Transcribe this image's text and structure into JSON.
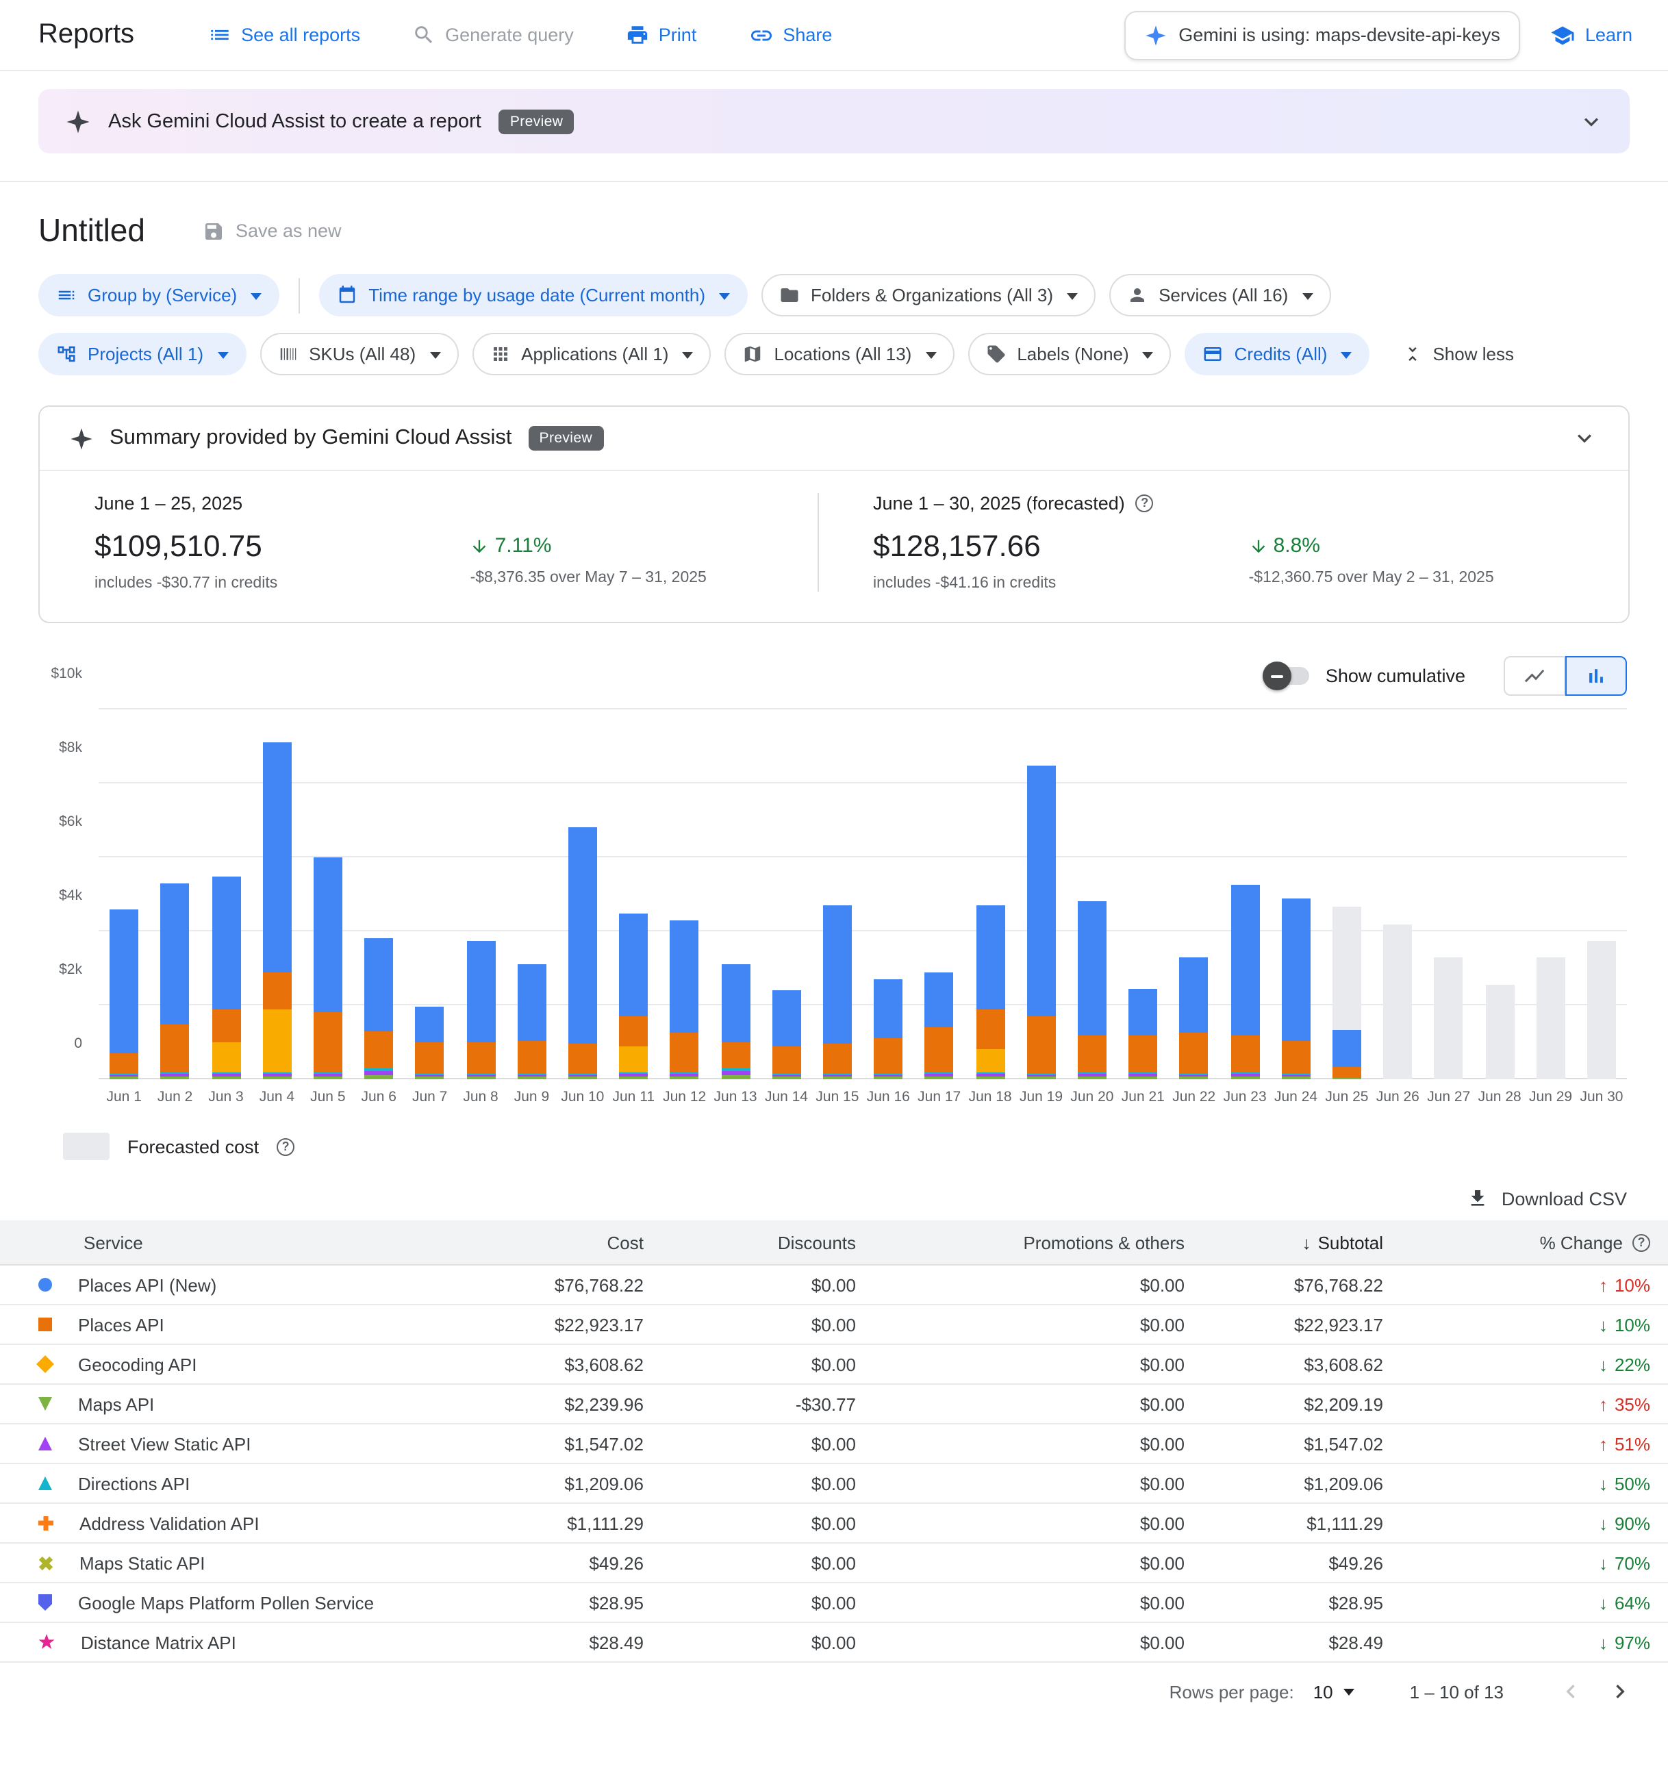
{
  "header": {
    "title": "Reports",
    "see_all": "See all reports",
    "generate_query": "Generate query",
    "print": "Print",
    "share": "Share",
    "gemini_using": "Gemini is using: maps-devsite-api-keys",
    "learn": "Learn"
  },
  "banner": {
    "text": "Ask Gemini Cloud Assist to create a report",
    "badge": "Preview"
  },
  "report": {
    "title": "Untitled",
    "save_as_new": "Save as new"
  },
  "filters": {
    "chips": [
      "Group by (Service)",
      "Time range by usage date (Current month)",
      "Folders & Organizations (All 3)",
      "Services (All 16)",
      "Projects (All 1)",
      "SKUs (All 48)",
      "Applications (All 1)",
      "Locations (All 13)",
      "Labels (None)",
      "Credits (All)"
    ],
    "show_less": "Show less"
  },
  "summary": {
    "title": "Summary provided by Gemini Cloud Assist",
    "badge": "Preview",
    "current": {
      "period": "June 1 – 25, 2025",
      "amount": "$109,510.75",
      "credits": "includes -$30.77 in credits",
      "change_pct": "7.11%",
      "change_note": "-$8,376.35 over May 7 – 31, 2025"
    },
    "forecast": {
      "period": "June 1 – 30, 2025 (forecasted)",
      "amount": "$128,157.66",
      "credits": "includes -$41.16 in credits",
      "change_pct": "8.8%",
      "change_note": "-$12,360.75 over May 2 – 31, 2025"
    }
  },
  "chart_controls": {
    "cumulative": "Show cumulative"
  },
  "chart_data": {
    "type": "bar",
    "stacked": true,
    "ylim": [
      0,
      10000
    ],
    "yticks": [
      {
        "v": 0,
        "label": "0"
      },
      {
        "v": 2,
        "label": "$2k"
      },
      {
        "v": 4,
        "label": "$4k"
      },
      {
        "v": 6,
        "label": "$6k"
      },
      {
        "v": 8,
        "label": "$8k"
      },
      {
        "v": 10,
        "label": "$10k"
      }
    ],
    "unit": "USD (thousands)",
    "legend_label": "Forecasted cost",
    "colors": {
      "blue": "#4285f4",
      "orange": "#e8710a",
      "yellow": "#f9ab00",
      "green": "#7cb342",
      "purple": "#a142f4",
      "teal": "#12b5cb",
      "gray": "#e8eaed"
    },
    "series_colors": {
      "blue": "Places API (New)",
      "orange": "Places API",
      "yellow": "Geocoding API",
      "green": "Maps API",
      "purple": "Street View Static API",
      "teal": "Directions API",
      "gray": "Forecasted cost"
    },
    "days": [
      {
        "label": "Jun 1",
        "stack": [
          [
            "green",
            0.06
          ],
          [
            "purple",
            0.06
          ],
          [
            "teal",
            0.03
          ],
          [
            "orange",
            0.55
          ],
          [
            "blue",
            3.9
          ]
        ]
      },
      {
        "label": "Jun 2",
        "stack": [
          [
            "green",
            0.08
          ],
          [
            "purple",
            0.08
          ],
          [
            "teal",
            0.04
          ],
          [
            "orange",
            1.3
          ],
          [
            "blue",
            3.8
          ]
        ]
      },
      {
        "label": "Jun 3",
        "stack": [
          [
            "green",
            0.08
          ],
          [
            "purple",
            0.08
          ],
          [
            "teal",
            0.04
          ],
          [
            "yellow",
            0.8
          ],
          [
            "orange",
            0.9
          ],
          [
            "blue",
            3.6
          ]
        ]
      },
      {
        "label": "Jun 4",
        "stack": [
          [
            "green",
            0.08
          ],
          [
            "purple",
            0.08
          ],
          [
            "teal",
            0.04
          ],
          [
            "yellow",
            1.7
          ],
          [
            "orange",
            1.0
          ],
          [
            "blue",
            6.2
          ]
        ]
      },
      {
        "label": "Jun 5",
        "stack": [
          [
            "green",
            0.08
          ],
          [
            "purple",
            0.08
          ],
          [
            "teal",
            0.04
          ],
          [
            "orange",
            1.6
          ],
          [
            "blue",
            4.2
          ]
        ]
      },
      {
        "label": "Jun 6",
        "stack": [
          [
            "green",
            0.12
          ],
          [
            "purple",
            0.12
          ],
          [
            "teal",
            0.06
          ],
          [
            "orange",
            1.0
          ],
          [
            "blue",
            2.5
          ]
        ]
      },
      {
        "label": "Jun 7",
        "stack": [
          [
            "green",
            0.06
          ],
          [
            "purple",
            0.06
          ],
          [
            "teal",
            0.03
          ],
          [
            "orange",
            0.85
          ],
          [
            "blue",
            0.95
          ]
        ]
      },
      {
        "label": "Jun 8",
        "stack": [
          [
            "green",
            0.06
          ],
          [
            "purple",
            0.06
          ],
          [
            "teal",
            0.03
          ],
          [
            "orange",
            0.85
          ],
          [
            "blue",
            2.75
          ]
        ]
      },
      {
        "label": "Jun 9",
        "stack": [
          [
            "green",
            0.06
          ],
          [
            "purple",
            0.06
          ],
          [
            "teal",
            0.03
          ],
          [
            "orange",
            0.9
          ],
          [
            "blue",
            2.05
          ]
        ]
      },
      {
        "label": "Jun 10",
        "stack": [
          [
            "green",
            0.06
          ],
          [
            "purple",
            0.06
          ],
          [
            "teal",
            0.03
          ],
          [
            "orange",
            0.8
          ],
          [
            "blue",
            5.85
          ]
        ]
      },
      {
        "label": "Jun 11",
        "stack": [
          [
            "green",
            0.08
          ],
          [
            "purple",
            0.08
          ],
          [
            "teal",
            0.04
          ],
          [
            "yellow",
            0.7
          ],
          [
            "orange",
            0.8
          ],
          [
            "blue",
            2.8
          ]
        ]
      },
      {
        "label": "Jun 12",
        "stack": [
          [
            "green",
            0.08
          ],
          [
            "purple",
            0.08
          ],
          [
            "teal",
            0.04
          ],
          [
            "orange",
            1.05
          ],
          [
            "blue",
            3.05
          ]
        ]
      },
      {
        "label": "Jun 13",
        "stack": [
          [
            "green",
            0.12
          ],
          [
            "purple",
            0.12
          ],
          [
            "teal",
            0.06
          ],
          [
            "orange",
            0.7
          ],
          [
            "blue",
            2.1
          ]
        ]
      },
      {
        "label": "Jun 14",
        "stack": [
          [
            "green",
            0.06
          ],
          [
            "purple",
            0.06
          ],
          [
            "teal",
            0.03
          ],
          [
            "orange",
            0.75
          ],
          [
            "blue",
            1.5
          ]
        ]
      },
      {
        "label": "Jun 15",
        "stack": [
          [
            "green",
            0.06
          ],
          [
            "purple",
            0.06
          ],
          [
            "teal",
            0.03
          ],
          [
            "orange",
            0.8
          ],
          [
            "blue",
            3.75
          ]
        ]
      },
      {
        "label": "Jun 16",
        "stack": [
          [
            "green",
            0.06
          ],
          [
            "purple",
            0.06
          ],
          [
            "teal",
            0.03
          ],
          [
            "orange",
            0.95
          ],
          [
            "blue",
            1.6
          ]
        ]
      },
      {
        "label": "Jun 17",
        "stack": [
          [
            "green",
            0.08
          ],
          [
            "purple",
            0.08
          ],
          [
            "teal",
            0.04
          ],
          [
            "orange",
            1.2
          ],
          [
            "blue",
            1.5
          ]
        ]
      },
      {
        "label": "Jun 18",
        "stack": [
          [
            "green",
            0.08
          ],
          [
            "purple",
            0.08
          ],
          [
            "teal",
            0.04
          ],
          [
            "yellow",
            0.6
          ],
          [
            "orange",
            1.1
          ],
          [
            "blue",
            2.8
          ]
        ]
      },
      {
        "label": "Jun 19",
        "stack": [
          [
            "green",
            0.06
          ],
          [
            "purple",
            0.06
          ],
          [
            "teal",
            0.03
          ],
          [
            "orange",
            1.55
          ],
          [
            "blue",
            6.8
          ]
        ]
      },
      {
        "label": "Jun 20",
        "stack": [
          [
            "green",
            0.08
          ],
          [
            "purple",
            0.08
          ],
          [
            "teal",
            0.04
          ],
          [
            "orange",
            1.0
          ],
          [
            "blue",
            3.6
          ]
        ]
      },
      {
        "label": "Jun 21",
        "stack": [
          [
            "green",
            0.08
          ],
          [
            "purple",
            0.08
          ],
          [
            "teal",
            0.04
          ],
          [
            "orange",
            1.0
          ],
          [
            "blue",
            1.25
          ]
        ]
      },
      {
        "label": "Jun 22",
        "stack": [
          [
            "green",
            0.06
          ],
          [
            "purple",
            0.06
          ],
          [
            "teal",
            0.03
          ],
          [
            "orange",
            1.1
          ],
          [
            "blue",
            2.05
          ]
        ]
      },
      {
        "label": "Jun 23",
        "stack": [
          [
            "green",
            0.08
          ],
          [
            "purple",
            0.08
          ],
          [
            "teal",
            0.04
          ],
          [
            "orange",
            1.0
          ],
          [
            "blue",
            4.05
          ]
        ]
      },
      {
        "label": "Jun 24",
        "stack": [
          [
            "green",
            0.06
          ],
          [
            "purple",
            0.06
          ],
          [
            "teal",
            0.03
          ],
          [
            "orange",
            0.9
          ],
          [
            "blue",
            3.85
          ]
        ]
      },
      {
        "label": "Jun 25",
        "stack": [
          [
            "green",
            0.05
          ],
          [
            "orange",
            0.3
          ],
          [
            "blue",
            1.0
          ],
          [
            "gray",
            3.3
          ]
        ]
      },
      {
        "label": "Jun 26",
        "stack": [
          [
            "gray",
            4.2
          ]
        ]
      },
      {
        "label": "Jun 27",
        "stack": [
          [
            "gray",
            3.3
          ]
        ]
      },
      {
        "label": "Jun 28",
        "stack": [
          [
            "gray",
            2.55
          ]
        ]
      },
      {
        "label": "Jun 29",
        "stack": [
          [
            "gray",
            3.3
          ]
        ]
      },
      {
        "label": "Jun 30",
        "stack": [
          [
            "gray",
            3.75
          ]
        ]
      }
    ]
  },
  "download_label": "Download CSV",
  "table": {
    "columns": [
      "Service",
      "Cost",
      "Discounts",
      "Promotions & others",
      "Subtotal",
      "% Change"
    ],
    "rows": [
      {
        "shape": "mk-circle",
        "color": "#4285f4",
        "service": "Places API (New)",
        "cost": "$76,768.22",
        "discounts": "$0.00",
        "promos": "$0.00",
        "subtotal": "$76,768.22",
        "change": {
          "dir": "up",
          "value": "10%"
        }
      },
      {
        "shape": "mk-square",
        "color": "#e8710a",
        "service": "Places API",
        "cost": "$22,923.17",
        "discounts": "$0.00",
        "promos": "$0.00",
        "subtotal": "$22,923.17",
        "change": {
          "dir": "down",
          "value": "10%"
        }
      },
      {
        "shape": "mk-diamond",
        "color": "#f9ab00",
        "service": "Geocoding API",
        "cost": "$3,608.62",
        "discounts": "$0.00",
        "promos": "$0.00",
        "subtotal": "$3,608.62",
        "change": {
          "dir": "down",
          "value": "22%"
        }
      },
      {
        "shape": "mk-tri-down",
        "color": "#7cb342",
        "service": "Maps API",
        "cost": "$2,239.96",
        "discounts": "-$30.77",
        "promos": "$0.00",
        "subtotal": "$2,209.19",
        "change": {
          "dir": "up",
          "value": "35%"
        }
      },
      {
        "shape": "mk-tri-up",
        "color": "#a142f4",
        "service": "Street View Static API",
        "cost": "$1,547.02",
        "discounts": "$0.00",
        "promos": "$0.00",
        "subtotal": "$1,547.02",
        "change": {
          "dir": "up",
          "value": "51%"
        }
      },
      {
        "shape": "mk-tri-up",
        "color": "#12b5cb",
        "service": "Directions API",
        "cost": "$1,209.06",
        "discounts": "$0.00",
        "promos": "$0.00",
        "subtotal": "$1,209.06",
        "change": {
          "dir": "down",
          "value": "50%"
        }
      },
      {
        "shape": "mk-plus",
        "color": "#fa7b17",
        "service": "Address Validation API",
        "cost": "$1,111.29",
        "discounts": "$0.00",
        "promos": "$0.00",
        "subtotal": "$1,111.29",
        "change": {
          "dir": "down",
          "value": "90%"
        }
      },
      {
        "shape": "mk-x",
        "color": "#afb42b",
        "service": "Maps Static API",
        "cost": "$49.26",
        "discounts": "$0.00",
        "promos": "$0.00",
        "subtotal": "$49.26",
        "change": {
          "dir": "down",
          "value": "70%"
        }
      },
      {
        "shape": "mk-shield",
        "color": "#5562ea",
        "service": "Google Maps Platform Pollen Service",
        "cost": "$28.95",
        "discounts": "$0.00",
        "promos": "$0.00",
        "subtotal": "$28.95",
        "change": {
          "dir": "down",
          "value": "64%"
        }
      },
      {
        "shape": "mk-star",
        "color": "#e52592",
        "service": "Distance Matrix API",
        "cost": "$28.49",
        "discounts": "$0.00",
        "promos": "$0.00",
        "subtotal": "$28.49",
        "change": {
          "dir": "down",
          "value": "97%"
        }
      }
    ]
  },
  "pagination": {
    "rows_per_page_label": "Rows per page:",
    "rows_per_page": "10",
    "range": "1 – 10 of 13"
  }
}
